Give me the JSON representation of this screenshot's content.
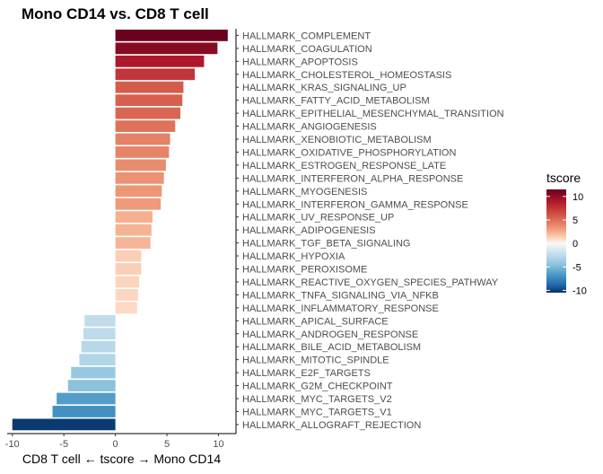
{
  "chart_data": {
    "type": "bar",
    "orientation": "horizontal",
    "title": "Mono CD14 vs. CD8 T cell",
    "xlabel": "CD8 T cell ← tscore → Mono CD14",
    "ylabel": "",
    "xlim": [
      -10.5,
      11.7
    ],
    "x_ticks": [
      -10,
      -5,
      0,
      5,
      10
    ],
    "x_tick_labels": [
      "-10",
      "-5",
      "0",
      "5",
      "10"
    ],
    "grid": false,
    "legend": {
      "title": "tscore",
      "placement": "right",
      "ticks": [
        10,
        5,
        0,
        -5,
        -10
      ],
      "tick_labels": [
        "10",
        "5",
        "0",
        "-5",
        "-10"
      ],
      "range": [
        -10.5,
        11.5
      ]
    },
    "colors": {
      "high": "#67001f",
      "mid": "#f7f7f7",
      "low": "#053061",
      "axis": "#000000"
    },
    "categories": [
      "HALLMARK_COMPLEMENT",
      "HALLMARK_COAGULATION",
      "HALLMARK_APOPTOSIS",
      "HALLMARK_CHOLESTEROL_HOMEOSTASIS",
      "HALLMARK_KRAS_SIGNALING_UP",
      "HALLMARK_FATTY_ACID_METABOLISM",
      "HALLMARK_EPITHELIAL_MESENCHYMAL_TRANSITION",
      "HALLMARK_ANGIOGENESIS",
      "HALLMARK_XENOBIOTIC_METABOLISM",
      "HALLMARK_OXIDATIVE_PHOSPHORYLATION",
      "HALLMARK_ESTROGEN_RESPONSE_LATE",
      "HALLMARK_INTERFERON_ALPHA_RESPONSE",
      "HALLMARK_MYOGENESIS",
      "HALLMARK_INTERFERON_GAMMA_RESPONSE",
      "HALLMARK_UV_RESPONSE_UP",
      "HALLMARK_ADIPOGENESIS",
      "HALLMARK_TGF_BETA_SIGNALING",
      "HALLMARK_HYPOXIA",
      "HALLMARK_PEROXISOME",
      "HALLMARK_REACTIVE_OXYGEN_SPECIES_PATHWAY",
      "HALLMARK_TNFA_SIGNALING_VIA_NFKB",
      "HALLMARK_INFLAMMATORY_RESPONSE",
      "HALLMARK_APICAL_SURFACE",
      "HALLMARK_ANDROGEN_RESPONSE",
      "HALLMARK_BILE_ACID_METABOLISM",
      "HALLMARK_MITOTIC_SPINDLE",
      "HALLMARK_E2F_TARGETS",
      "HALLMARK_G2M_CHECKPOINT",
      "HALLMARK_MYC_TARGETS_V2",
      "HALLMARK_MYC_TARGETS_V1",
      "HALLMARK_ALLOGRAFT_REJECTION"
    ],
    "values": [
      10.9,
      9.9,
      8.6,
      7.7,
      6.6,
      6.5,
      6.3,
      5.8,
      5.3,
      5.2,
      4.9,
      4.7,
      4.5,
      4.4,
      3.6,
      3.5,
      3.4,
      2.5,
      2.5,
      2.3,
      2.2,
      2.1,
      -3.0,
      -3.1,
      -3.3,
      -3.5,
      -4.3,
      -4.6,
      -5.7,
      -6.1,
      -10.0
    ]
  }
}
